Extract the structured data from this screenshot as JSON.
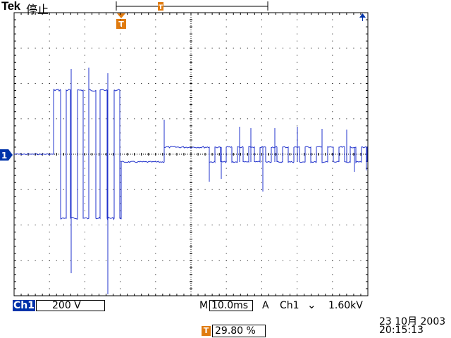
{
  "header": {
    "brand": "Tek",
    "run_state": "停止"
  },
  "trigger_marker": {
    "label": "T",
    "color": "#e07b10"
  },
  "channel_marker": {
    "label": "1",
    "color": "#0033aa"
  },
  "status_bar": {
    "channel": "Ch1",
    "volts_per_div": "200 V",
    "timebase_prefix": "M",
    "timebase": "10.0ms",
    "trigger_mode": "A",
    "trigger_source": "Ch1",
    "trigger_slope_symbol": "⌄",
    "trigger_level": "1.60kV",
    "trigger_position_icon": "T",
    "trigger_position": "29.80 %",
    "date": "23 10月 2003",
    "time": "20:15:13"
  },
  "colors": {
    "trace": "#2233cc",
    "graticule": "#000000",
    "trigger": "#e07b10",
    "channel": "#0033aa"
  }
}
